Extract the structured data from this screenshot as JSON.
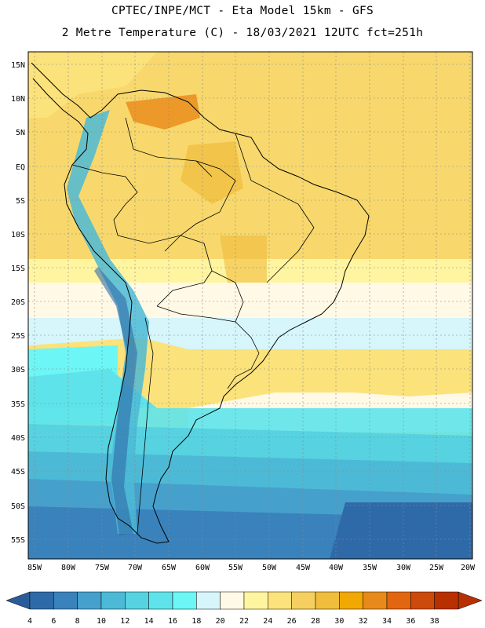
{
  "title_line1": "CPTEC/INPE/MCT -  Eta Model 15km - GFS",
  "title_line2": "2 Metre Temperature (C) - 18/03/2021 12UTC fct=251h",
  "lat_labels": [
    "15N",
    "10N",
    "5N",
    "EQ",
    "5S",
    "10S",
    "15S",
    "20S",
    "25S",
    "30S",
    "35S",
    "40S",
    "45S",
    "50S",
    "55S"
  ],
  "lon_labels": [
    "85W",
    "80W",
    "75W",
    "70W",
    "65W",
    "60W",
    "55W",
    "50W",
    "45W",
    "40W",
    "35W",
    "30W",
    "25W",
    "20W"
  ],
  "colorbar": {
    "labels": [
      "4",
      "6",
      "8",
      "10",
      "12",
      "14",
      "16",
      "18",
      "20",
      "22",
      "24",
      "26",
      "28",
      "30",
      "32",
      "34",
      "36",
      "38"
    ],
    "colors": [
      "#2f6aa8",
      "#3a82bb",
      "#46a0cc",
      "#4cbad6",
      "#57d2e0",
      "#5fe3ea",
      "#6cf6f6",
      "#d6f6fb",
      "#fff9e6",
      "#fff5a0",
      "#fbe27a",
      "#f5d060",
      "#f0bd3c",
      "#f1a800",
      "#e88a1a",
      "#e26610",
      "#cc4a0a",
      "#b83000"
    ],
    "lower_arrow_color": "#2a5c99",
    "upper_arrow_color": "#b83000"
  }
}
